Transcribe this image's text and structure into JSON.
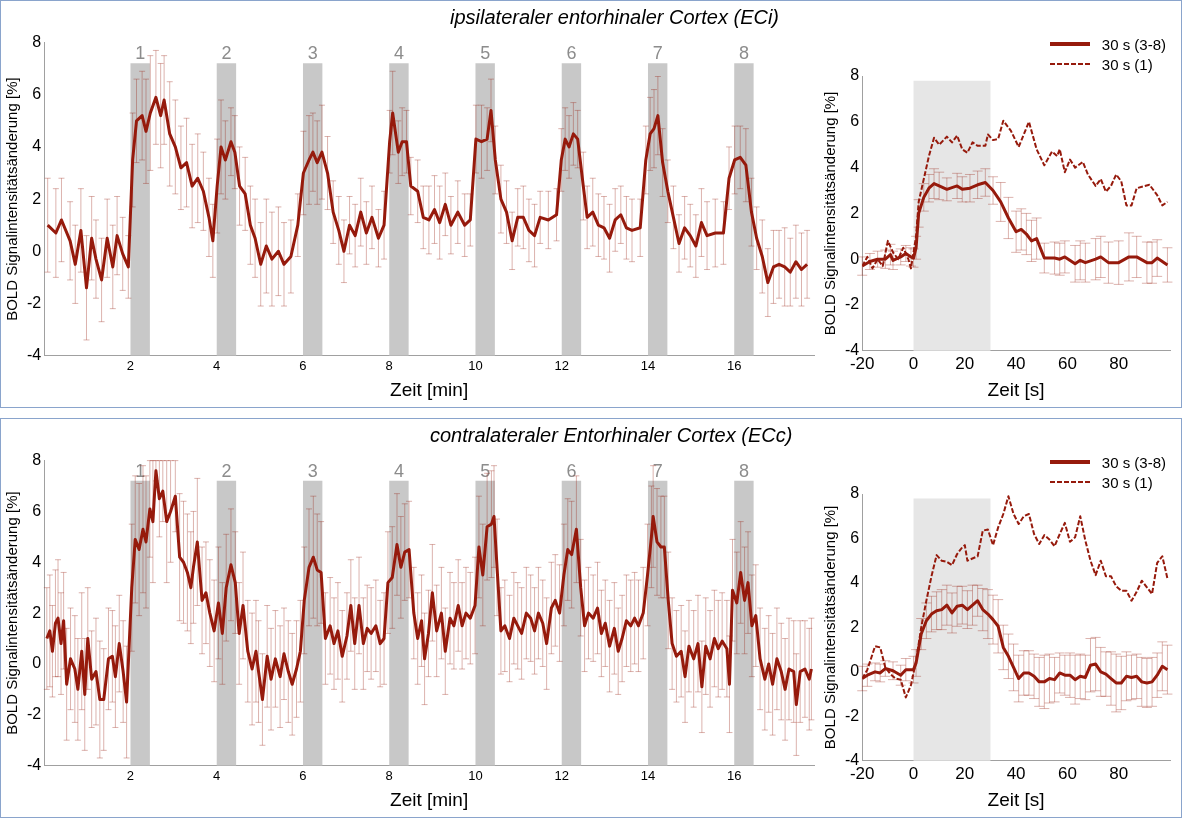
{
  "chart_data": [
    {
      "type": "line",
      "title": "ipsilateraler entorhinaler Cortex (ECi)",
      "xlabel": "Zeit [min]",
      "ylabel": "BOLD Signalintensitätsänderung [%]",
      "xlim": [
        0,
        17.85
      ],
      "xticks": [
        2,
        4,
        6,
        8,
        10,
        12,
        14,
        16
      ],
      "ylim": [
        -4,
        8
      ],
      "yticks": [
        -4,
        -2,
        0,
        2,
        4,
        6,
        8
      ],
      "marker": "none",
      "line_style": "solid",
      "x": [
        0.08,
        0.27,
        0.4,
        0.6,
        0.72,
        0.85,
        0.98,
        1.1,
        1.2,
        1.33,
        1.46,
        1.59,
        1.69,
        1.82,
        1.95,
        2.05,
        2.14,
        2.27,
        2.36,
        2.46,
        2.59,
        2.7,
        2.78,
        2.91,
        3.04,
        3.17,
        3.3,
        3.43,
        3.56,
        3.69,
        3.82,
        3.91,
        4.01,
        4.1,
        4.2,
        4.33,
        4.42,
        4.53,
        4.66,
        4.78,
        4.89,
        5.02,
        5.15,
        5.28,
        5.43,
        5.56,
        5.72,
        5.88,
        6.01,
        6.14,
        6.23,
        6.33,
        6.44,
        6.57,
        6.7,
        6.83,
        6.95,
        7.08,
        7.21,
        7.34,
        7.47,
        7.6,
        7.75,
        7.88,
        8.01,
        8.08,
        8.21,
        8.3,
        8.4,
        8.5,
        8.66,
        8.79,
        8.92,
        9.05,
        9.17,
        9.3,
        9.43,
        9.59,
        9.75,
        9.88,
        10.01,
        10.14,
        10.27,
        10.36,
        10.46,
        10.59,
        10.72,
        10.85,
        10.98,
        11.11,
        11.24,
        11.37,
        11.5,
        11.69,
        11.88,
        11.99,
        12.08,
        12.17,
        12.27,
        12.37,
        12.5,
        12.59,
        12.72,
        12.85,
        12.98,
        13.11,
        13.24,
        13.37,
        13.5,
        13.63,
        13.82,
        13.95,
        14.05,
        14.14,
        14.23,
        14.34,
        14.46,
        14.59,
        14.72,
        14.85,
        14.98,
        15.11,
        15.24,
        15.37,
        15.56,
        15.75,
        15.88,
        16.01,
        16.14,
        16.27,
        16.4,
        16.52,
        16.65,
        16.78,
        16.91,
        17.04,
        17.17,
        17.3,
        17.43,
        17.56,
        17.69
      ],
      "series": [
        {
          "color": "#961a0c",
          "values": [
            1.0,
            0.7,
            1.2,
            0.4,
            -0.5,
            0.8,
            -1.4,
            0.5,
            -0.3,
            -1.1,
            0.5,
            -0.6,
            0.6,
            -0.1,
            -0.6,
            3.5,
            5.0,
            5.2,
            4.6,
            5.3,
            5.9,
            5.2,
            5.8,
            4.5,
            4.0,
            3.2,
            3.4,
            2.5,
            2.8,
            2.3,
            1.3,
            0.4,
            2.5,
            4.0,
            3.5,
            4.2,
            3.8,
            2.5,
            2.2,
            1.0,
            0.5,
            -0.5,
            0.2,
            -0.3,
            0.0,
            -0.5,
            -0.2,
            1.0,
            3.0,
            3.5,
            3.8,
            3.4,
            3.8,
            3.0,
            1.5,
            0.8,
            0.0,
            1.0,
            0.6,
            1.5,
            0.7,
            1.3,
            0.5,
            1.0,
            4.2,
            5.3,
            3.8,
            4.2,
            4.2,
            2.5,
            2.3,
            1.3,
            1.2,
            1.6,
            1.1,
            1.8,
            1.0,
            1.5,
            1.0,
            1.2,
            4.3,
            4.2,
            4.3,
            5.4,
            3.5,
            2.0,
            1.5,
            0.4,
            1.3,
            1.3,
            0.8,
            0.6,
            1.3,
            1.2,
            1.4,
            3.5,
            4.3,
            4.0,
            4.5,
            4.3,
            2.5,
            1.3,
            1.5,
            1.0,
            0.9,
            0.5,
            1.2,
            1.4,
            0.9,
            0.8,
            0.9,
            3.5,
            4.5,
            4.7,
            5.2,
            3.4,
            2.3,
            1.3,
            0.3,
            0.9,
            0.6,
            0.2,
            1.1,
            0.6,
            0.7,
            0.7,
            2.8,
            3.5,
            3.6,
            3.3,
            1.5,
            0.5,
            -0.2,
            -1.2,
            -0.6,
            -0.5,
            -0.6,
            -0.8,
            -0.4,
            -0.7,
            -0.5
          ],
          "errors": [
            1.8,
            1.7,
            1.6,
            1.5,
            1.5,
            1.6,
            2.0,
            1.6,
            1.5,
            1.6,
            1.5,
            1.6,
            1.5,
            1.4,
            1.2,
            1.8,
            1.6,
            1.7,
            2.0,
            2.2,
            1.8,
            2.0,
            1.7,
            2.0,
            1.8,
            1.6,
            1.7,
            1.6,
            1.7,
            1.5,
            1.5,
            1.4,
            1.8,
            1.8,
            1.5,
            1.3,
            1.4,
            1.5,
            1.4,
            1.5,
            1.5,
            1.6,
            1.8,
            1.8,
            1.7,
            1.6,
            1.4,
            1.2,
            1.6,
            1.7,
            1.5,
            1.6,
            1.8,
            1.4,
            1.2,
            1.3,
            1.2,
            1.1,
            1.2,
            1.3,
            1.2,
            1.2,
            1.1,
            1.3,
            1.2,
            1.6,
            1.2,
            1.3,
            1.2,
            1.1,
            1.2,
            1.2,
            1.3,
            1.3,
            1.4,
            1.2,
            1.1,
            1.2,
            1.2,
            1.0,
            1.3,
            1.4,
            1.2,
            1.2,
            1.3,
            1.3,
            1.2,
            1.1,
            1.1,
            1.2,
            1.2,
            1.2,
            1.0,
            1.1,
            1.0,
            1.2,
            1.2,
            1.2,
            1.2,
            1.1,
            1.3,
            1.2,
            1.3,
            1.2,
            1.2,
            1.3,
            1.2,
            1.1,
            1.2,
            1.2,
            1.1,
            1.3,
            1.4,
            1.5,
            1.5,
            1.3,
            1.2,
            1.2,
            1.1,
            1.2,
            1.2,
            1.2,
            1.3,
            1.3,
            1.3,
            1.2,
            1.2,
            1.3,
            1.2,
            1.4,
            1.3,
            1.2,
            1.4,
            1.3,
            1.4,
            1.3,
            1.5,
            1.3,
            1.4,
            1.4,
            1.3
          ]
        }
      ],
      "bands": [
        {
          "axis": "x",
          "from": 2,
          "to": 2.45,
          "label": "1",
          "color": "#c8c8c8"
        },
        {
          "axis": "x",
          "from": 4,
          "to": 4.45,
          "label": "2",
          "color": "#c8c8c8"
        },
        {
          "axis": "x",
          "from": 6,
          "to": 6.45,
          "label": "3",
          "color": "#c8c8c8"
        },
        {
          "axis": "x",
          "from": 8,
          "to": 8.45,
          "label": "4",
          "color": "#c8c8c8"
        },
        {
          "axis": "x",
          "from": 10,
          "to": 10.45,
          "label": "5",
          "color": "#c8c8c8"
        },
        {
          "axis": "x",
          "from": 12,
          "to": 12.45,
          "label": "6",
          "color": "#c8c8c8"
        },
        {
          "axis": "x",
          "from": 14,
          "to": 14.45,
          "label": "7",
          "color": "#c8c8c8"
        },
        {
          "axis": "x",
          "from": 16,
          "to": 16.45,
          "label": "8",
          "color": "#c8c8c8"
        }
      ]
    },
    {
      "type": "line",
      "xlabel": "Zeit [s]",
      "ylabel": "BOLD Signalintensitätsänderung [%]",
      "xlim": [
        -20,
        100
      ],
      "xticks": [
        -20,
        0,
        20,
        40,
        60,
        80
      ],
      "ylim": [
        -4,
        8
      ],
      "yticks": [
        -4,
        -2,
        0,
        2,
        4,
        6,
        8
      ],
      "marker": "none",
      "legend": "top right",
      "series": [
        {
          "name": "30 s (3-8)",
          "color": "#961a0c",
          "line_style": "solid",
          "x": [
            -20,
            -17,
            -14,
            -11,
            -9,
            -8,
            -5,
            -3,
            -1,
            0,
            1,
            2,
            4,
            6,
            8,
            10,
            13,
            17,
            19,
            22,
            25,
            28,
            31,
            34,
            37,
            40,
            42,
            44,
            46,
            48,
            51,
            55,
            57,
            59,
            63,
            65,
            67,
            71,
            73,
            76,
            80,
            84,
            87,
            91,
            93,
            95,
            99
          ],
          "values": [
            -0.3,
            -0.1,
            0.0,
            0.0,
            0.2,
            -0.05,
            0.1,
            0.25,
            0.1,
            0.05,
            0.5,
            2.0,
            2.7,
            3.1,
            3.3,
            3.2,
            3.05,
            3.2,
            3.05,
            3.1,
            3.25,
            3.35,
            3.0,
            2.5,
            1.8,
            1.2,
            1.3,
            1.1,
            0.8,
            0.9,
            0.05,
            0.05,
            0.0,
            0.1,
            -0.2,
            -0.05,
            -0.15,
            0.0,
            0.1,
            -0.15,
            -0.15,
            0.1,
            0.1,
            -0.15,
            -0.15,
            0.05,
            -0.25
          ],
          "errors": [
            0.4,
            0.35,
            0.35,
            0.4,
            0.45,
            0.4,
            0.35,
            0.35,
            0.4,
            0.4,
            0.5,
            0.6,
            0.6,
            0.6,
            0.65,
            0.6,
            0.5,
            0.55,
            0.55,
            0.6,
            0.6,
            0.6,
            0.6,
            0.85,
            0.9,
            0.9,
            0.9,
            0.9,
            0.9,
            0.9,
            0.65,
            0.7,
            0.7,
            0.7,
            0.8,
            0.85,
            0.85,
            0.9,
            0.9,
            0.9,
            0.95,
            1.05,
            0.9,
            0.9,
            0.9,
            0.8,
            0.75
          ]
        },
        {
          "name": "30 s (1)",
          "color": "#961a0c",
          "line_style": "dashed",
          "x": [
            -20,
            -18,
            -16,
            -14,
            -12,
            -10,
            -8,
            -6,
            -4,
            -2,
            -1,
            1,
            2,
            4,
            6,
            8,
            10,
            13,
            15,
            17,
            19,
            21,
            23,
            25,
            28,
            29,
            31,
            33,
            35,
            38,
            41,
            45,
            48,
            51,
            54,
            56,
            57,
            59,
            61,
            63,
            66,
            68,
            71,
            73,
            75,
            77,
            79,
            81,
            83,
            85,
            87,
            92,
            95,
            97,
            99
          ],
          "values": [
            -0.3,
            0.1,
            -0.4,
            0.0,
            -0.3,
            0.8,
            0.3,
            0.0,
            0.5,
            0.0,
            -0.4,
            1.0,
            2.5,
            3.5,
            4.5,
            5.3,
            5.0,
            5.35,
            5.1,
            5.4,
            4.8,
            4.65,
            5.1,
            4.95,
            4.95,
            5.45,
            5.2,
            5.25,
            6.05,
            5.6,
            4.9,
            6.0,
            4.8,
            4.1,
            4.7,
            4.5,
            4.8,
            3.8,
            4.35,
            4.0,
            4.25,
            3.7,
            3.2,
            3.5,
            2.95,
            3.2,
            3.7,
            3.4,
            2.35,
            2.35,
            3.1,
            3.25,
            2.8,
            2.35,
            2.5
          ]
        }
      ],
      "bands": [
        {
          "axis": "x",
          "from": 0,
          "to": 30,
          "color": "#e6e6e6"
        }
      ]
    },
    {
      "type": "line",
      "title": "contralateraler Entorhinaler Cortex (ECc)",
      "xlabel": "Zeit [min]",
      "ylabel": "BOLD Signalintensitätsänderung [%]",
      "xlim": [
        0,
        17.85
      ],
      "xticks": [
        2,
        4,
        6,
        8,
        10,
        12,
        14,
        16
      ],
      "ylim": [
        -4,
        8
      ],
      "yticks": [
        -4,
        -2,
        0,
        2,
        4,
        6,
        8
      ],
      "marker": "none",
      "line_style": "solid",
      "x": [
        0.06,
        0.13,
        0.19,
        0.26,
        0.32,
        0.39,
        0.45,
        0.52,
        0.61,
        0.71,
        0.78,
        0.87,
        0.94,
        1.01,
        1.1,
        1.2,
        1.29,
        1.38,
        1.49,
        1.58,
        1.65,
        1.74,
        1.83,
        1.91,
        2.03,
        2.11,
        2.2,
        2.29,
        2.36,
        2.45,
        2.52,
        2.59,
        2.67,
        2.75,
        2.84,
        2.93,
        3.04,
        3.14,
        3.23,
        3.32,
        3.4,
        3.46,
        3.55,
        3.66,
        3.75,
        3.84,
        3.94,
        4.04,
        4.13,
        4.22,
        4.33,
        4.43,
        4.52,
        4.61,
        4.72,
        4.82,
        4.91,
        4.97,
        5.06,
        5.17,
        5.26,
        5.36,
        5.47,
        5.56,
        5.66,
        5.75,
        5.85,
        5.94,
        6.03,
        6.14,
        6.24,
        6.33,
        6.42,
        6.52,
        6.63,
        6.72,
        6.81,
        6.91,
        7.02,
        7.11,
        7.2,
        7.3,
        7.4,
        7.49,
        7.58,
        7.69,
        7.79,
        7.88,
        7.97,
        8.07,
        8.18,
        8.27,
        8.36,
        8.46,
        8.57,
        8.66,
        8.75,
        8.82,
        8.91,
        9.0,
        9.1,
        9.21,
        9.3,
        9.41,
        9.5,
        9.6,
        9.69,
        9.78,
        9.88,
        9.99,
        10.08,
        10.17,
        10.27,
        10.37,
        10.43,
        10.5,
        10.59,
        10.68,
        10.79,
        10.89,
        10.98,
        11.07,
        11.18,
        11.28,
        11.37,
        11.46,
        11.56,
        11.65,
        11.76,
        11.85,
        11.95,
        12.05,
        12.14,
        12.23,
        12.34,
        12.44,
        12.53,
        12.62,
        12.73,
        12.83,
        12.92,
        13.01,
        13.11,
        13.22,
        13.31,
        13.4,
        13.5,
        13.6,
        13.69,
        13.78,
        13.89,
        13.99,
        14.08,
        14.12,
        14.21,
        14.3,
        14.38,
        14.47,
        14.56,
        14.66,
        14.77,
        14.86,
        14.95,
        15.06,
        15.16,
        15.25,
        15.34,
        15.44,
        15.54,
        15.63,
        15.72,
        15.83,
        15.89,
        15.96,
        16.06,
        16.15,
        16.24,
        16.32,
        16.41,
        16.5,
        16.6,
        16.71,
        16.8,
        16.89,
        16.99,
        17.09,
        17.18,
        17.27,
        17.38,
        17.44,
        17.53,
        17.64,
        17.74,
        17.79
      ],
      "series": [
        {
          "color": "#961a0c",
          "values": [
            1.0,
            1.3,
            0.5,
            1.6,
            1.8,
            0.8,
            1.7,
            -0.8,
            0.2,
            -0.2,
            -1.0,
            0.5,
            -1.2,
            1.0,
            -0.6,
            -0.3,
            -1.4,
            -1.4,
            0.2,
            0.3,
            -0.5,
            0.8,
            -0.3,
            -1.5,
            3.0,
            4.9,
            4.5,
            5.3,
            4.8,
            6.1,
            5.6,
            7.6,
            6.5,
            6.8,
            5.6,
            6.0,
            6.6,
            4.2,
            4.0,
            3.6,
            3.0,
            3.8,
            4.8,
            2.5,
            2.8,
            2.0,
            1.3,
            2.4,
            1.2,
            3.0,
            3.9,
            3.2,
            1.2,
            2.3,
            0.5,
            -0.2,
            0.5,
            -0.3,
            -1.4,
            0.3,
            -0.6,
            0.2,
            -0.5,
            0.4,
            -0.3,
            -0.8,
            -0.2,
            0.5,
            2.5,
            3.8,
            4.2,
            3.7,
            3.6,
            1.0,
            1.5,
            0.8,
            1.3,
            0.3,
            1.1,
            2.3,
            0.8,
            2.3,
            0.8,
            1.4,
            1.2,
            1.5,
            0.8,
            1.0,
            3.2,
            3.4,
            4.7,
            3.8,
            4.4,
            4.5,
            2.0,
            1.0,
            1.7,
            0.2,
            1.2,
            2.8,
            1.3,
            2.0,
            0.5,
            1.8,
            1.5,
            2.3,
            1.5,
            2.0,
            1.8,
            2.3,
            4.6,
            3.5,
            5.4,
            5.5,
            5.8,
            3.8,
            1.3,
            1.5,
            1.0,
            1.8,
            1.5,
            1.2,
            2.0,
            1.8,
            1.3,
            2.0,
            1.6,
            0.8,
            2.2,
            2.5,
            2.0,
            3.5,
            4.5,
            4.3,
            5.3,
            3.0,
            1.5,
            2.0,
            1.8,
            2.2,
            1.2,
            1.6,
            0.7,
            1.4,
            0.5,
            1.0,
            1.7,
            1.5,
            1.8,
            1.5,
            2.0,
            3.5,
            5.0,
            5.8,
            4.8,
            4.6,
            4.6,
            2.5,
            0.8,
            0.3,
            0.5,
            -0.5,
            0.7,
            0.2,
            0.8,
            -0.9,
            0.7,
            0.2,
            1.0,
            0.6,
            0.9,
            0.6,
            -0.8,
            2.9,
            2.4,
            3.6,
            2.5,
            3.2,
            1.5,
            1.9,
            0.2,
            -0.6,
            0.0,
            -0.8,
            0.2,
            -0.3,
            -1.0,
            -0.2,
            -0.3,
            -1.6,
            -0.3,
            -0.2,
            -0.6,
            -0.2
          ],
          "errors": [
            2.0,
            2.2,
            1.8,
            2.1,
            2.3,
            2.0,
            1.9,
            2.2,
            2.0,
            2.1,
            2.0,
            2.3,
            2.2,
            2.0,
            1.9,
            2.1,
            2.3,
            2.0,
            2.0,
            1.8,
            2.0,
            1.9,
            2.0,
            2.2,
            2.5,
            2.5,
            2.6,
            2.5,
            2.6,
            1.9,
            2.4,
            0.4,
            1.5,
            1.2,
            2.4,
            2.0,
            1.4,
            2.5,
            2.4,
            2.3,
            2.2,
            2.2,
            2.5,
            2.1,
            2.0,
            2.1,
            2.0,
            2.2,
            2.0,
            2.1,
            2.2,
            2.0,
            2.0,
            2.1,
            2.0,
            2.2,
            2.0,
            2.0,
            1.8,
            2.0,
            2.0,
            1.9,
            2.0,
            1.8,
            2.0,
            2.0,
            1.9,
            2.0,
            2.1,
            2.3,
            2.4,
            2.2,
            2.0,
            1.8,
            1.9,
            1.8,
            1.9,
            1.8,
            1.7,
            1.8,
            1.8,
            1.9,
            1.8,
            1.7,
            1.8,
            1.8,
            1.7,
            1.8,
            2.0,
            2.0,
            2.0,
            2.0,
            1.9,
            1.9,
            1.8,
            1.8,
            1.8,
            1.8,
            1.7,
            1.9,
            1.8,
            1.8,
            1.7,
            1.8,
            1.7,
            1.8,
            1.7,
            1.8,
            1.8,
            1.9,
            2.0,
            2.0,
            2.1,
            2.1,
            2.0,
            1.9,
            1.7,
            1.8,
            1.7,
            1.8,
            1.7,
            1.8,
            1.8,
            1.7,
            1.7,
            1.8,
            1.7,
            1.8,
            1.8,
            1.8,
            1.9,
            2.0,
            2.0,
            2.1,
            2.1,
            1.9,
            1.8,
            1.8,
            1.7,
            1.8,
            1.7,
            1.7,
            1.8,
            1.8,
            1.7,
            1.7,
            1.8,
            1.8,
            1.8,
            1.8,
            1.8,
            2.0,
            2.0,
            2.0,
            2.1,
            2.0,
            2.0,
            1.9,
            1.8,
            1.8,
            1.8,
            1.8,
            1.8,
            1.9,
            1.9,
            1.8,
            1.9,
            1.9,
            1.9,
            1.9,
            1.9,
            1.9,
            1.9,
            2.0,
            2.0,
            2.0,
            2.1,
            2.0,
            2.0,
            2.0,
            2.0,
            2.0,
            1.9,
            2.0,
            2.0,
            1.9,
            2.0,
            2.0,
            2.0,
            2.0,
            2.0,
            1.9,
            2.0,
            2.0
          ]
        }
      ],
      "bands": [
        {
          "axis": "x",
          "from": 2,
          "to": 2.45,
          "label": "1",
          "color": "#c8c8c8"
        },
        {
          "axis": "x",
          "from": 4,
          "to": 4.45,
          "label": "2",
          "color": "#c8c8c8"
        },
        {
          "axis": "x",
          "from": 6,
          "to": 6.45,
          "label": "3",
          "color": "#c8c8c8"
        },
        {
          "axis": "x",
          "from": 8,
          "to": 8.45,
          "label": "4",
          "color": "#c8c8c8"
        },
        {
          "axis": "x",
          "from": 10,
          "to": 10.45,
          "label": "5",
          "color": "#c8c8c8"
        },
        {
          "axis": "x",
          "from": 12,
          "to": 12.45,
          "label": "6",
          "color": "#c8c8c8"
        },
        {
          "axis": "x",
          "from": 14,
          "to": 14.45,
          "label": "7",
          "color": "#c8c8c8"
        },
        {
          "axis": "x",
          "from": 16,
          "to": 16.45,
          "label": "8",
          "color": "#c8c8c8"
        }
      ]
    },
    {
      "type": "line",
      "xlabel": "Zeit [s]",
      "ylabel": "BOLD Signalintensitätsänderung [%]",
      "xlim": [
        -20,
        100
      ],
      "xticks": [
        -20,
        0,
        20,
        40,
        60,
        80
      ],
      "ylim": [
        -4,
        8
      ],
      "yticks": [
        -4,
        -2,
        0,
        2,
        4,
        6,
        8
      ],
      "marker": "none",
      "legend": "top right",
      "series": [
        {
          "name": "30 s (3-8)",
          "color": "#961a0c",
          "line_style": "solid",
          "x": [
            -20,
            -18,
            -15,
            -13,
            -11,
            -8,
            -5,
            -3,
            0,
            1,
            3,
            5,
            7,
            9,
            11,
            13,
            15,
            17,
            19,
            21,
            23,
            25,
            27,
            29,
            31,
            33,
            35,
            37,
            39,
            41,
            43,
            45,
            47,
            49,
            51,
            53,
            55,
            57,
            59,
            61,
            63,
            65,
            67,
            69,
            71,
            73,
            75,
            77,
            79,
            81,
            83,
            85,
            87,
            89,
            91,
            93,
            95,
            97,
            99
          ],
          "values": [
            -0.3,
            -0.15,
            0.0,
            -0.05,
            0.15,
            0.05,
            -0.15,
            0.1,
            0.1,
            0.4,
            1.7,
            2.3,
            2.6,
            2.75,
            2.8,
            3.0,
            2.65,
            2.95,
            3.0,
            2.8,
            3.0,
            3.2,
            2.8,
            2.6,
            2.35,
            2.05,
            1.1,
            0.7,
            0.2,
            -0.3,
            -0.05,
            -0.05,
            -0.2,
            -0.45,
            -0.45,
            -0.3,
            -0.35,
            -0.05,
            -0.15,
            -0.15,
            -0.35,
            -0.2,
            -0.25,
            0.3,
            0.35,
            0.0,
            -0.1,
            -0.3,
            -0.5,
            -0.5,
            -0.2,
            -0.25,
            -0.2,
            -0.45,
            -0.5,
            -0.45,
            -0.15,
            0.25,
            0.1
          ],
          "errors": [
            0.55,
            0.5,
            0.4,
            0.4,
            0.35,
            0.4,
            0.45,
            0.5,
            0.6,
            0.6,
            0.7,
            0.8,
            0.8,
            0.85,
            0.9,
            0.9,
            0.9,
            0.9,
            0.85,
            0.85,
            0.9,
            0.7,
            0.95,
            1.1,
            1.1,
            1.2,
            1.0,
            1.0,
            1.05,
            1.05,
            1.0,
            1.0,
            1.0,
            1.1,
            1.2,
            1.1,
            1.0,
            0.9,
            0.9,
            1.0,
            1.1,
            1.0,
            1.0,
            1.2,
            1.2,
            1.1,
            1.0,
            1.2,
            1.3,
            1.2,
            1.1,
            1.0,
            1.0,
            1.1,
            1.1,
            1.1,
            1.0,
            1.1,
            1.1
          ]
        },
        {
          "name": "30 s (1)",
          "color": "#961a0c",
          "line_style": "dashed",
          "x": [
            -20,
            -18,
            -15,
            -13,
            -11,
            -9,
            -7,
            -5,
            -3,
            -1,
            1,
            3,
            5,
            7,
            9,
            11,
            13,
            15,
            17,
            19,
            20,
            21,
            25,
            27,
            29,
            31,
            33,
            35,
            37,
            39,
            41,
            43,
            45,
            47,
            49,
            51,
            53,
            55,
            57,
            59,
            61,
            63,
            65,
            67,
            69,
            71,
            73,
            75,
            77,
            79,
            81,
            83,
            85,
            87,
            89,
            91,
            93,
            95,
            97,
            99
          ],
          "values": [
            -0.3,
            0.1,
            1.15,
            1.1,
            0.2,
            -0.1,
            -0.3,
            -0.35,
            -1.15,
            -0.6,
            0.5,
            2.0,
            3.2,
            4.3,
            5.25,
            5.0,
            4.95,
            4.8,
            5.3,
            5.6,
            5.7,
            5.0,
            5.2,
            6.35,
            6.4,
            5.7,
            6.5,
            7.1,
            7.9,
            7.1,
            6.65,
            7.0,
            7.1,
            6.2,
            5.75,
            6.15,
            5.95,
            5.65,
            6.2,
            6.7,
            5.85,
            6.05,
            7.0,
            5.9,
            5.0,
            4.35,
            5.0,
            4.3,
            4.3,
            3.85,
            3.65,
            3.65,
            3.2,
            3.6,
            4.1,
            3.8,
            3.5,
            4.9,
            5.2,
            4.2
          ]
        }
      ],
      "bands": [
        {
          "axis": "x",
          "from": 0,
          "to": 30,
          "color": "#e6e6e6"
        }
      ]
    }
  ]
}
